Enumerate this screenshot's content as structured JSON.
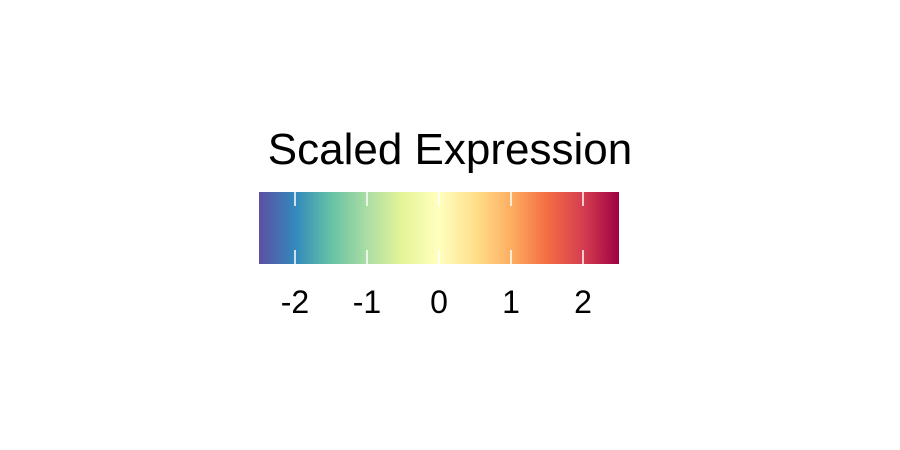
{
  "chart_data": {
    "type": "heatmap",
    "title": "Scaled Expression",
    "colorbar": {
      "orientation": "horizontal",
      "range": [
        -2.5,
        2.5
      ],
      "ticks": [
        -2,
        -1,
        0,
        1,
        2
      ],
      "tick_labels": [
        "-2",
        "-1",
        "0",
        "1",
        "2"
      ],
      "palette_stops": [
        {
          "value": -2.5,
          "color": "#5e4fa2"
        },
        {
          "value": -2.0,
          "color": "#3288bd"
        },
        {
          "value": -1.5,
          "color": "#66c2a5"
        },
        {
          "value": -1.0,
          "color": "#abdda4"
        },
        {
          "value": -0.5,
          "color": "#e6f598"
        },
        {
          "value": 0.0,
          "color": "#ffffbf"
        },
        {
          "value": 0.5,
          "color": "#fee08b"
        },
        {
          "value": 1.0,
          "color": "#fdae61"
        },
        {
          "value": 1.5,
          "color": "#f46d43"
        },
        {
          "value": 2.0,
          "color": "#d53e4f"
        },
        {
          "value": 2.5,
          "color": "#9e0142"
        }
      ]
    }
  }
}
